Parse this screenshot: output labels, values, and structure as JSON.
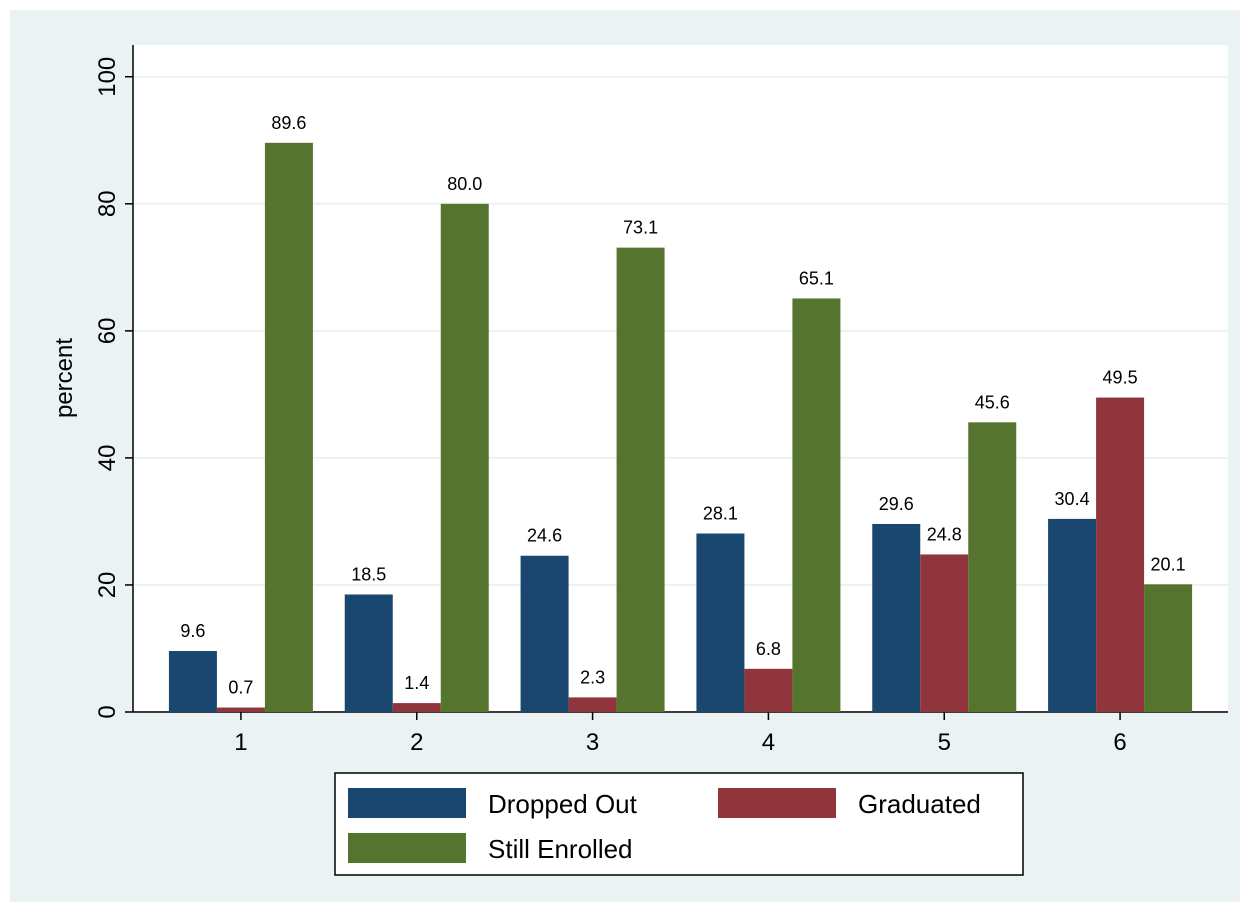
{
  "chart_data": {
    "type": "bar",
    "y_label": "percent",
    "categories": [
      "1",
      "2",
      "3",
      "4",
      "5",
      "6"
    ],
    "series": [
      {
        "name": "Dropped Out",
        "color": "#1a476f",
        "values": [
          9.6,
          18.5,
          24.6,
          28.1,
          29.6,
          30.4
        ]
      },
      {
        "name": "Graduated",
        "color": "#90353b",
        "values": [
          0.7,
          1.4,
          2.3,
          6.8,
          24.8,
          49.5
        ]
      },
      {
        "name": "Still Enrolled",
        "color": "#55752f",
        "values": [
          89.6,
          80,
          73.1,
          65.1,
          45.6,
          20.1
        ],
        "value_labels": [
          "89.6",
          "80.0",
          "73.1",
          "65.1",
          "45.6",
          "20.1"
        ]
      }
    ],
    "ylim": [
      0,
      105
    ],
    "yticks": [
      0,
      20,
      40,
      60,
      80,
      100
    ],
    "grid": true
  }
}
